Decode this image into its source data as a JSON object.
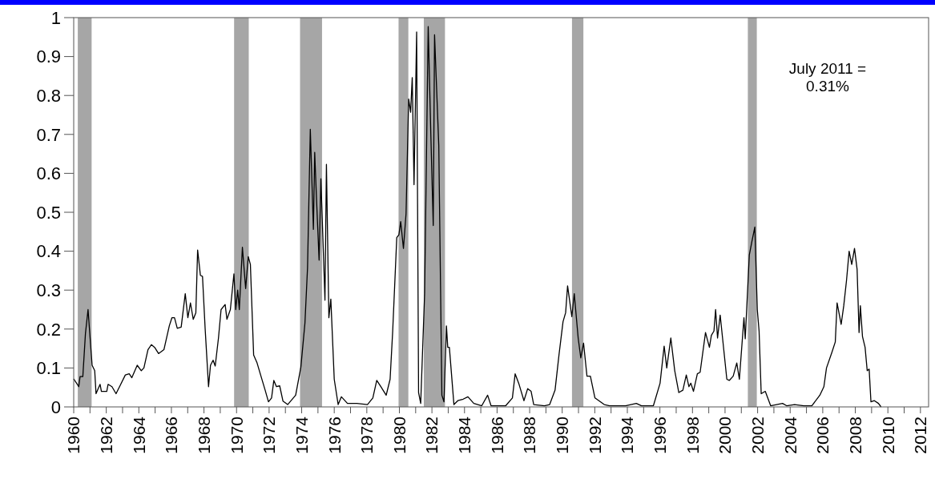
{
  "chart_data": {
    "type": "line",
    "x": [
      1960.0,
      1960.31,
      1960.39,
      1960.56,
      1960.72,
      1960.88,
      1961.13,
      1961.29,
      1961.37,
      1961.62,
      1961.7,
      1962.03,
      1962.11,
      1962.35,
      1962.6,
      1962.84,
      1963.17,
      1963.41,
      1963.57,
      1963.9,
      1964.15,
      1964.31,
      1964.56,
      1964.77,
      1964.97,
      1965.21,
      1965.54,
      1965.87,
      1966.03,
      1966.19,
      1966.36,
      1966.6,
      1966.85,
      1967.01,
      1967.17,
      1967.34,
      1967.5,
      1967.61,
      1967.78,
      1967.91,
      1968.07,
      1968.28,
      1968.4,
      1968.56,
      1968.69,
      1968.89,
      1969.05,
      1969.3,
      1969.41,
      1969.62,
      1969.84,
      1969.95,
      1970.07,
      1970.17,
      1970.36,
      1970.56,
      1970.72,
      1970.85,
      1971.05,
      1971.26,
      1971.5,
      1971.75,
      1971.96,
      1972.15,
      1972.29,
      1972.45,
      1972.65,
      1972.85,
      1973.14,
      1973.63,
      1973.95,
      1974.2,
      1974.36,
      1974.53,
      1974.72,
      1974.8,
      1974.9,
      1975.07,
      1975.18,
      1975.43,
      1975.52,
      1975.67,
      1975.79,
      1976.0,
      1976.24,
      1976.44,
      1976.81,
      1977.39,
      1978.04,
      1978.37,
      1978.61,
      1978.86,
      1979.19,
      1979.43,
      1979.59,
      1979.84,
      1979.97,
      1980.08,
      1980.25,
      1980.41,
      1980.57,
      1980.69,
      1980.79,
      1980.9,
      1981.06,
      1981.18,
      1981.31,
      1981.55,
      1981.77,
      1981.93,
      1982.08,
      1982.16,
      1982.42,
      1982.61,
      1982.74,
      1982.89,
      1982.97,
      1983.07,
      1983.35,
      1983.59,
      1983.92,
      1984.21,
      1984.57,
      1985.06,
      1985.42,
      1985.63,
      1986.53,
      1986.94,
      1987.11,
      1987.35,
      1987.65,
      1987.88,
      1988.09,
      1988.25,
      1988.91,
      1989.23,
      1989.56,
      1989.8,
      1990.05,
      1990.21,
      1990.33,
      1990.59,
      1990.74,
      1990.98,
      1991.14,
      1991.31,
      1991.52,
      1991.73,
      1992.01,
      1992.58,
      1992.91,
      1993.89,
      1994.55,
      1994.87,
      1995.6,
      1996.01,
      1996.26,
      1996.42,
      1996.67,
      1996.91,
      1997.16,
      1997.41,
      1997.62,
      1997.78,
      1997.9,
      1998.06,
      1998.3,
      1998.47,
      1998.8,
      1999.04,
      1999.16,
      1999.32,
      1999.42,
      1999.54,
      1999.7,
      2000.11,
      2000.26,
      2000.5,
      2000.72,
      2000.88,
      2001.16,
      2001.24,
      2001.49,
      2001.65,
      2001.83,
      2001.98,
      2002.09,
      2002.22,
      2002.47,
      2002.8,
      2003.53,
      2003.78,
      2004.27,
      2004.84,
      2005.33,
      2005.82,
      2006.07,
      2006.23,
      2006.56,
      2006.77,
      2006.88,
      2007.13,
      2007.29,
      2007.46,
      2007.62,
      2007.78,
      2007.95,
      2008.11,
      2008.23,
      2008.31,
      2008.44,
      2008.6,
      2008.73,
      2008.85,
      2008.96,
      2009.17,
      2009.42,
      2009.58
    ],
    "series": [
      {
        "color": "#000000",
        "values": [
          0.072,
          0.052,
          0.078,
          0.078,
          0.188,
          0.25,
          0.107,
          0.093,
          0.034,
          0.058,
          0.04,
          0.04,
          0.058,
          0.052,
          0.034,
          0.054,
          0.082,
          0.085,
          0.075,
          0.107,
          0.093,
          0.1,
          0.147,
          0.16,
          0.153,
          0.137,
          0.147,
          0.208,
          0.229,
          0.229,
          0.202,
          0.205,
          0.291,
          0.229,
          0.267,
          0.225,
          0.242,
          0.403,
          0.338,
          0.335,
          0.202,
          0.052,
          0.107,
          0.12,
          0.105,
          0.177,
          0.25,
          0.263,
          0.225,
          0.25,
          0.342,
          0.25,
          0.3,
          0.25,
          0.41,
          0.304,
          0.386,
          0.366,
          0.133,
          0.113,
          0.079,
          0.044,
          0.013,
          0.023,
          0.068,
          0.052,
          0.054,
          0.015,
          0.006,
          0.03,
          0.102,
          0.215,
          0.358,
          0.713,
          0.456,
          0.654,
          0.545,
          0.377,
          0.586,
          0.274,
          0.623,
          0.229,
          0.277,
          0.071,
          0.006,
          0.026,
          0.009,
          0.009,
          0.006,
          0.023,
          0.068,
          0.052,
          0.03,
          0.071,
          0.195,
          0.435,
          0.442,
          0.476,
          0.407,
          0.497,
          0.791,
          0.757,
          0.846,
          0.571,
          0.963,
          0.037,
          0.009,
          0.291,
          0.977,
          0.702,
          0.466,
          0.956,
          0.671,
          0.03,
          0.013,
          0.208,
          0.153,
          0.153,
          0.006,
          0.016,
          0.02,
          0.026,
          0.009,
          0.003,
          0.03,
          0.003,
          0.003,
          0.023,
          0.085,
          0.058,
          0.016,
          0.047,
          0.04,
          0.006,
          0.003,
          0.006,
          0.043,
          0.133,
          0.219,
          0.242,
          0.311,
          0.232,
          0.291,
          0.177,
          0.126,
          0.164,
          0.079,
          0.079,
          0.023,
          0.006,
          0.003,
          0.003,
          0.009,
          0.003,
          0.003,
          0.061,
          0.156,
          0.1,
          0.177,
          0.093,
          0.037,
          0.043,
          0.082,
          0.052,
          0.061,
          0.04,
          0.085,
          0.089,
          0.191,
          0.153,
          0.184,
          0.195,
          0.25,
          0.177,
          0.236,
          0.071,
          0.068,
          0.079,
          0.113,
          0.071,
          0.229,
          0.175,
          0.39,
          0.425,
          0.462,
          0.25,
          0.195,
          0.034,
          0.04,
          0.003,
          0.009,
          0.003,
          0.006,
          0.003,
          0.003,
          0.03,
          0.052,
          0.1,
          0.14,
          0.167,
          0.267,
          0.212,
          0.26,
          0.325,
          0.4,
          0.366,
          0.407,
          0.353,
          0.191,
          0.26,
          0.181,
          0.153,
          0.093,
          0.097,
          0.013,
          0.016,
          0.009,
          0.0
        ]
      }
    ],
    "xlim": [
      1960,
      2012.5
    ],
    "xticks": [
      1960,
      {
        "value": 1961,
        "label": null
      },
      1962,
      {
        "value": 1963,
        "label": null
      },
      1964,
      {
        "value": 1965,
        "label": null
      },
      1966,
      {
        "value": 1967,
        "label": null
      },
      1968,
      {
        "value": 1969,
        "label": null
      },
      1970,
      {
        "value": 1971,
        "label": null
      },
      1972,
      {
        "value": 1973,
        "label": null
      },
      1974,
      {
        "value": 1975,
        "label": null
      },
      1976,
      {
        "value": 1977,
        "label": null
      },
      1978,
      {
        "value": 1979,
        "label": null
      },
      1980,
      {
        "value": 1981,
        "label": null
      },
      1982,
      {
        "value": 1983,
        "label": null
      },
      1984,
      {
        "value": 1985,
        "label": null
      },
      1986,
      {
        "value": 1987,
        "label": null
      },
      1988,
      {
        "value": 1989,
        "label": null
      },
      1990,
      {
        "value": 1991,
        "label": null
      },
      1992,
      {
        "value": 1993,
        "label": null
      },
      1994,
      {
        "value": 1995,
        "label": null
      },
      1996,
      {
        "value": 1997,
        "label": null
      },
      1998,
      {
        "value": 1999,
        "label": null
      },
      2000,
      {
        "value": 2001,
        "label": null
      },
      2002,
      {
        "value": 2003,
        "label": null
      },
      2004,
      {
        "value": 2005,
        "label": null
      },
      2006,
      {
        "value": 2007,
        "label": null
      },
      2008,
      {
        "value": 2009,
        "label": null
      },
      2010,
      {
        "value": 2011,
        "label": null
      },
      2012
    ],
    "ylim": [
      0,
      1
    ],
    "yticks": [
      0,
      0.1,
      0.2,
      0.3,
      0.4,
      0.5,
      0.6,
      0.7,
      0.8,
      0.9,
      1
    ],
    "bands": [
      {
        "axis": "x",
        "from": 1960.25,
        "to": 1961.1,
        "color": "#a6a6a6"
      },
      {
        "axis": "x",
        "from": 1969.85,
        "to": 1970.75,
        "color": "#a6a6a6"
      },
      {
        "axis": "x",
        "from": 1973.9,
        "to": 1975.25,
        "color": "#a6a6a6"
      },
      {
        "axis": "x",
        "from": 1979.95,
        "to": 1980.55,
        "color": "#a6a6a6"
      },
      {
        "axis": "x",
        "from": 1981.5,
        "to": 1982.8,
        "color": "#a6a6a6"
      },
      {
        "axis": "x",
        "from": 1990.6,
        "to": 1991.3,
        "color": "#a6a6a6"
      },
      {
        "axis": "x",
        "from": 2001.4,
        "to": 2001.95,
        "color": "#a6a6a6"
      }
    ],
    "annotations": [
      "July 2011 =\n0.31%"
    ],
    "marker": "none",
    "line_style": "solid"
  }
}
